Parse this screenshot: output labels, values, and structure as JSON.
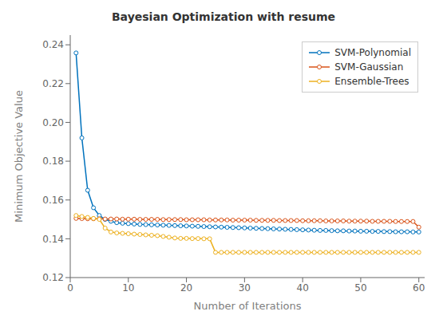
{
  "chart_data": {
    "type": "line",
    "title": "Bayesian Optimization with resume",
    "xlabel": "Number of Iterations",
    "ylabel": "Minimum Objective Value",
    "xlim": [
      0,
      61
    ],
    "ylim": [
      0.12,
      0.245
    ],
    "xticks": [
      0,
      10,
      20,
      30,
      40,
      50,
      60
    ],
    "yticks": [
      0.12,
      0.14,
      0.16,
      0.18,
      {
        "value": 0.2,
        "label": "0.20"
      },
      0.22,
      0.24
    ],
    "grid": false,
    "legend": "upper right",
    "marker": "circle",
    "line_style": "solid",
    "x": [
      1,
      2,
      3,
      4,
      5,
      6,
      7,
      8,
      9,
      10,
      11,
      12,
      13,
      14,
      15,
      16,
      17,
      18,
      19,
      20,
      21,
      22,
      23,
      24,
      25,
      26,
      27,
      28,
      29,
      30,
      31,
      32,
      33,
      34,
      35,
      36,
      37,
      38,
      39,
      40,
      41,
      42,
      43,
      44,
      45,
      46,
      47,
      48,
      49,
      50,
      51,
      52,
      53,
      54,
      55,
      56,
      57,
      58,
      59,
      60
    ],
    "series": [
      {
        "name": "SVM-Polynomial",
        "color": "#0072BD",
        "values": [
          0.2358,
          0.192,
          0.165,
          0.156,
          0.152,
          0.15,
          0.149,
          0.1483,
          0.148,
          0.1478,
          0.1476,
          0.1474,
          0.1473,
          0.1472,
          0.1471,
          0.147,
          0.1469,
          0.1468,
          0.1467,
          0.1466,
          0.1465,
          0.1464,
          0.1463,
          0.1462,
          0.1461,
          0.146,
          0.1459,
          0.1458,
          0.1457,
          0.1456,
          0.1455,
          0.1454,
          0.1453,
          0.1452,
          0.1451,
          0.145,
          0.1449,
          0.1448,
          0.1447,
          0.1446,
          0.1445,
          0.1444,
          0.1443,
          0.1443,
          0.1442,
          0.1441,
          0.1441,
          0.144,
          0.144,
          0.1439,
          0.1439,
          0.1438,
          0.1438,
          0.1437,
          0.1437,
          0.1436,
          0.1436,
          0.1436,
          0.1435,
          0.1435
        ]
      },
      {
        "name": "SVM-Gaussian",
        "color": "#D95319",
        "values": [
          0.1505,
          0.1504,
          0.1503,
          0.1503,
          0.1503,
          0.1502,
          0.1502,
          0.1502,
          0.1501,
          0.1501,
          0.1501,
          0.15,
          0.15,
          0.15,
          0.15,
          0.1499,
          0.1499,
          0.1499,
          0.1499,
          0.1498,
          0.1498,
          0.1498,
          0.1498,
          0.1497,
          0.1497,
          0.1497,
          0.1497,
          0.1496,
          0.1496,
          0.1496,
          0.1496,
          0.1495,
          0.1495,
          0.1495,
          0.1495,
          0.1494,
          0.1494,
          0.1494,
          0.1494,
          0.1493,
          0.1493,
          0.1493,
          0.1493,
          0.1492,
          0.1492,
          0.1492,
          0.1492,
          0.1491,
          0.1491,
          0.1491,
          0.1491,
          0.149,
          0.149,
          0.149,
          0.149,
          0.1489,
          0.1489,
          0.1489,
          0.1489,
          0.146
        ]
      },
      {
        "name": "Ensemble-Trees",
        "color": "#EDB120",
        "values": [
          0.152,
          0.1515,
          0.151,
          0.1505,
          0.15,
          0.1455,
          0.1435,
          0.143,
          0.1428,
          0.1426,
          0.1424,
          0.1422,
          0.142,
          0.1418,
          0.1416,
          0.1412,
          0.1408,
          0.1404,
          0.1402,
          0.1402,
          0.1401,
          0.1401,
          0.14,
          0.14,
          0.133,
          0.133,
          0.133,
          0.133,
          0.133,
          0.133,
          0.133,
          0.133,
          0.133,
          0.133,
          0.133,
          0.133,
          0.133,
          0.133,
          0.133,
          0.133,
          0.133,
          0.133,
          0.133,
          0.133,
          0.133,
          0.133,
          0.133,
          0.133,
          0.133,
          0.133,
          0.133,
          0.133,
          0.133,
          0.133,
          0.133,
          0.133,
          0.133,
          0.133,
          0.133,
          0.133
        ]
      }
    ]
  }
}
